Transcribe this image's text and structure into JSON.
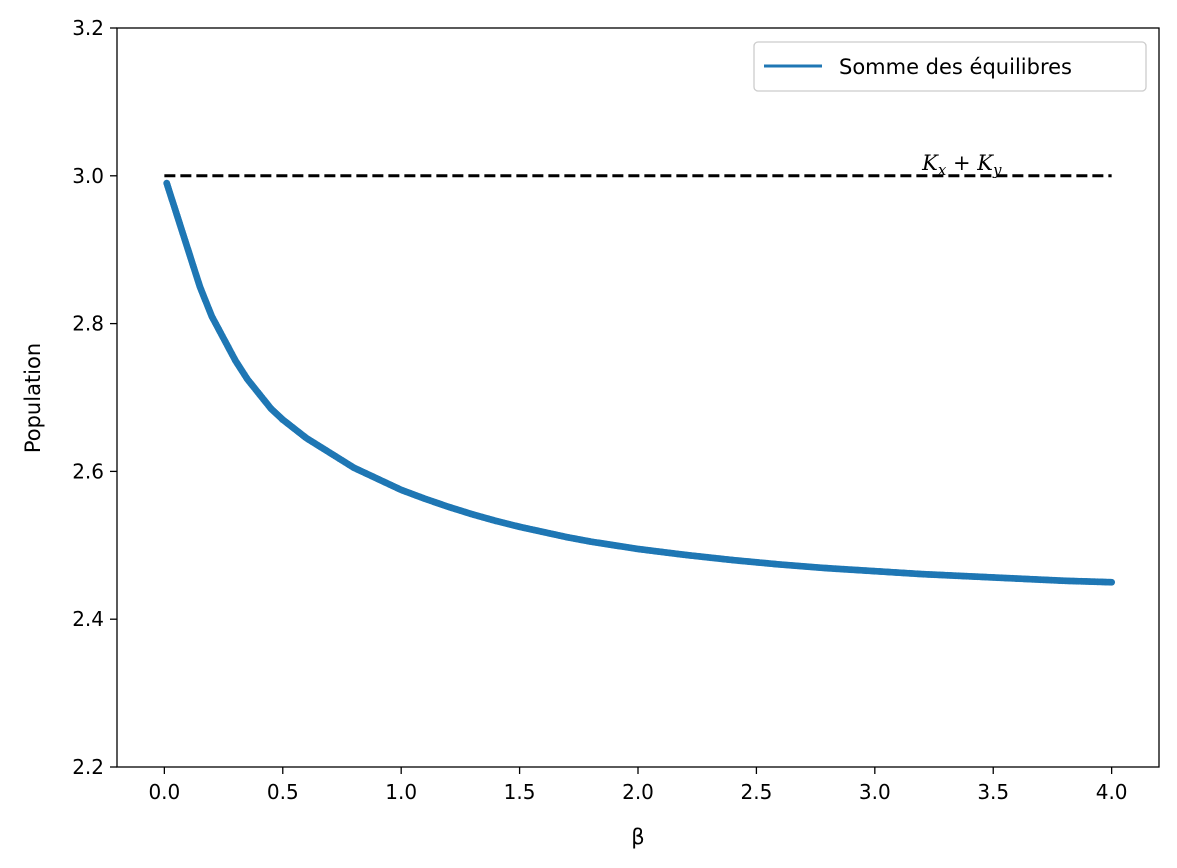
{
  "chart_data": {
    "type": "scatter",
    "xlabel": "β",
    "ylabel": "Population",
    "xlim": [
      -0.2,
      4.2
    ],
    "ylim": [
      2.2,
      3.2
    ],
    "xticks": [
      0.0,
      0.5,
      1.0,
      1.5,
      2.0,
      2.5,
      3.0,
      3.5,
      4.0
    ],
    "xtick_labels": [
      "0.0",
      "0.5",
      "1.0",
      "1.5",
      "2.0",
      "2.5",
      "3.0",
      "3.5",
      "4.0"
    ],
    "yticks": [
      2.2,
      2.4,
      2.6,
      2.8,
      3.0,
      3.2
    ],
    "ytick_labels": [
      "2.2",
      "2.4",
      "2.6",
      "2.8",
      "3.0",
      "3.2"
    ],
    "legend": {
      "position": "top-right",
      "entries": [
        "Somme des équilibres"
      ]
    },
    "grid": false,
    "series": [
      {
        "name": "Somme des équilibres",
        "color": "#1f77b4",
        "style": "markers",
        "x": [
          0.01,
          0.05,
          0.1,
          0.15,
          0.2,
          0.25,
          0.3,
          0.35,
          0.4,
          0.45,
          0.5,
          0.6,
          0.7,
          0.8,
          0.9,
          1.0,
          1.1,
          1.2,
          1.3,
          1.4,
          1.5,
          1.6,
          1.7,
          1.8,
          1.9,
          2.0,
          2.2,
          2.4,
          2.6,
          2.8,
          3.0,
          3.2,
          3.4,
          3.6,
          3.8,
          4.0
        ],
        "y": [
          2.99,
          2.95,
          2.9,
          2.85,
          2.81,
          2.78,
          2.75,
          2.725,
          2.705,
          2.685,
          2.67,
          2.645,
          2.625,
          2.605,
          2.59,
          2.575,
          2.563,
          2.552,
          2.542,
          2.533,
          2.525,
          2.518,
          2.511,
          2.505,
          2.5,
          2.495,
          2.487,
          2.48,
          2.474,
          2.469,
          2.465,
          2.461,
          2.458,
          2.455,
          2.452,
          2.45
        ]
      },
      {
        "style": "dashed-line",
        "color": "#000000",
        "x": [
          0.0,
          4.0
        ],
        "y": [
          3.0,
          3.0
        ]
      }
    ],
    "annotations": [
      {
        "text": "K",
        "sub": "x",
        "op": " + ",
        "text2": "K",
        "sub2": "y",
        "x": 3.2,
        "y": 3.0
      }
    ]
  }
}
